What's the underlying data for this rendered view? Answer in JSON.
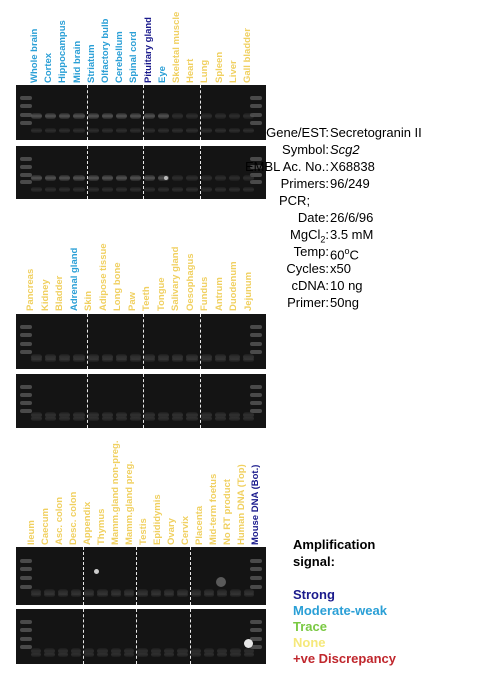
{
  "panel1": {
    "labels": [
      {
        "text": "Whole brain",
        "color": "#2a9fd6"
      },
      {
        "text": "Cortex",
        "color": "#2a9fd6"
      },
      {
        "text": "Hippocampus",
        "color": "#2a9fd6"
      },
      {
        "text": "Mid brain",
        "color": "#2a9fd6"
      },
      {
        "text": "Striatum",
        "color": "#2a9fd6"
      },
      {
        "text": "Olfactory bulb",
        "color": "#2a9fd6"
      },
      {
        "text": "Cerebellum",
        "color": "#2a9fd6"
      },
      {
        "text": "Spinal cord",
        "color": "#2a9fd6"
      },
      {
        "text": "Pituitary gland",
        "color": "#1a1a8c"
      },
      {
        "text": "Eye",
        "color": "#2a9fd6"
      },
      {
        "text": "Skeletal muscle",
        "color": "#f0d060"
      },
      {
        "text": "Heart",
        "color": "#f0d060"
      },
      {
        "text": "Lung",
        "color": "#f0d060"
      },
      {
        "text": "Spleen",
        "color": "#f0d060"
      },
      {
        "text": "Liver",
        "color": "#f0d060"
      },
      {
        "text": "Gall bladder",
        "color": "#f0d060"
      }
    ]
  },
  "panel2": {
    "labels": [
      {
        "text": "Pancreas",
        "color": "#f0d060"
      },
      {
        "text": "Kidney",
        "color": "#f0d060"
      },
      {
        "text": "Bladder",
        "color": "#f0d060"
      },
      {
        "text": "Adrenal gland",
        "color": "#2a9fd6"
      },
      {
        "text": "Skin",
        "color": "#f0d060"
      },
      {
        "text": "Adipose tissue",
        "color": "#f0d060"
      },
      {
        "text": "Long bone",
        "color": "#f0d060"
      },
      {
        "text": "Paw",
        "color": "#f0d060"
      },
      {
        "text": "Teeth",
        "color": "#f0d060"
      },
      {
        "text": "Tongue",
        "color": "#f0d060"
      },
      {
        "text": "Salivary gland",
        "color": "#f0d060"
      },
      {
        "text": "Oesophagus",
        "color": "#f0d060"
      },
      {
        "text": "Fundus",
        "color": "#f0d060"
      },
      {
        "text": "Antrum",
        "color": "#f0d060"
      },
      {
        "text": "Duodenum",
        "color": "#f0d060"
      },
      {
        "text": "Jejunum",
        "color": "#f0d060"
      }
    ]
  },
  "panel3": {
    "labels": [
      {
        "text": "Ileum",
        "color": "#f0d060"
      },
      {
        "text": "Caecum",
        "color": "#f0d060"
      },
      {
        "text": "Asc. colon",
        "color": "#f0d060"
      },
      {
        "text": "Desc. colon",
        "color": "#f0d060"
      },
      {
        "text": "Appendix",
        "color": "#f0d060"
      },
      {
        "text": "Thymus",
        "color": "#f0d060"
      },
      {
        "text": "Mamm.gland non-preg.",
        "color": "#f0d060"
      },
      {
        "text": "Mamm.gland preg.",
        "color": "#f0d060"
      },
      {
        "text": "Testis",
        "color": "#f0d060"
      },
      {
        "text": "Epididymis",
        "color": "#f0d060"
      },
      {
        "text": "Ovary",
        "color": "#f0d060"
      },
      {
        "text": "Cervix",
        "color": "#f0d060"
      },
      {
        "text": "Placenta",
        "color": "#f0d060"
      },
      {
        "text": "Mid-term foetus",
        "color": "#f0d060"
      },
      {
        "text": "No RT product",
        "color": "#f0d060"
      },
      {
        "text": "Human DNA (Top)",
        "color": "#f0d060"
      },
      {
        "text": "Mouse DNA (Bot.)",
        "color": "#1a1a8c"
      }
    ]
  },
  "info": {
    "gene_key": "Gene/EST:",
    "gene_val": "Secretogranin II",
    "symbol_key": "Symbol:",
    "symbol_val": "Scg2",
    "embl_key": "EMBL Ac. No.:",
    "embl_val": "X68838",
    "primers_key": "Primers:",
    "primers_val": "96/249",
    "pcr_key": "PCR;",
    "date_key": "Date:",
    "date_val": "26/6/96",
    "mgcl_key_a": "MgCl",
    "mgcl_key_sub": "2",
    "mgcl_key_b": ":",
    "mgcl_val": "3.5 mM",
    "temp_key": "Temp:",
    "temp_val_a": "60",
    "temp_val_sup": "o",
    "temp_val_b": "C",
    "cycles_key": "Cycles:",
    "cycles_val": "x50",
    "cdna_key": "cDNA:",
    "cdna_val": "10 ng",
    "primer_key": "Primer:",
    "primer_val": "50ng"
  },
  "legend": {
    "title": "Amplification signal:",
    "items": [
      {
        "text": "Strong",
        "color": "#1a1a8c"
      },
      {
        "text": "Moderate-weak",
        "color": "#2a9fd6"
      },
      {
        "text": "Trace",
        "color": "#7ac943"
      },
      {
        "text": "None",
        "color": "#f5e87a"
      },
      {
        "text": "+ve Discrepancy",
        "color": "#c0272d"
      }
    ]
  }
}
